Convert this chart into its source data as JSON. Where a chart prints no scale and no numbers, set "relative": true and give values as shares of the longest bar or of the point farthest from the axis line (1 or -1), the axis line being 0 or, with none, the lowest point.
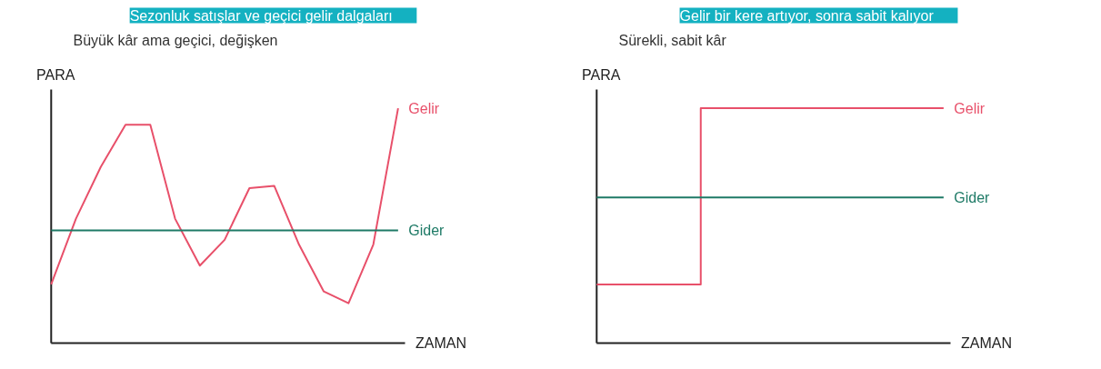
{
  "chart_data": [
    {
      "type": "line",
      "title": "Sezonluk satışlar ve geçici gelir dalgaları",
      "subtitle": "Büyük kâr ama geçici, değişken",
      "xlabel": "ZAMAN",
      "ylabel": "PARA",
      "relative": true,
      "categories": [
        null,
        null,
        null,
        null,
        null,
        null,
        null,
        null,
        null,
        null,
        null,
        null,
        null,
        null,
        null
      ],
      "series": [
        {
          "name": "Gelir",
          "color": "#e8506a",
          "values": [
            0.25,
            0.53,
            0.75,
            0.93,
            0.93,
            0.53,
            0.33,
            0.44,
            0.66,
            0.67,
            0.42,
            0.22,
            0.17,
            0.42,
            1.0
          ]
        },
        {
          "name": "Gider",
          "color": "#1e7a66",
          "values": [
            0.48,
            0.48,
            0.48,
            0.48,
            0.48,
            0.48,
            0.48,
            0.48,
            0.48,
            0.48,
            0.48,
            0.48,
            0.48,
            0.48,
            0.48
          ]
        }
      ]
    },
    {
      "type": "step",
      "title": "Gelir bir kere artıyor, sonra sabit kalıyor",
      "subtitle": "Sürekli, sabit kâr",
      "xlabel": "ZAMAN",
      "ylabel": "PARA",
      "relative": true,
      "categories": [
        null,
        null,
        null,
        null,
        null,
        null,
        null,
        null,
        null,
        null,
        null
      ],
      "series": [
        {
          "name": "Gelir",
          "color": "#e8506a",
          "values": [
            0.25,
            0.25,
            0.25,
            1,
            1,
            1,
            1,
            1,
            1,
            1,
            1
          ]
        },
        {
          "name": "Gider",
          "color": "#1e7a66",
          "type": "line",
          "values": [
            0.62,
            0.62,
            0.62,
            0.62,
            0.62,
            0.62,
            0.62,
            0.62,
            0.62,
            0.62,
            0.62
          ]
        }
      ]
    }
  ]
}
